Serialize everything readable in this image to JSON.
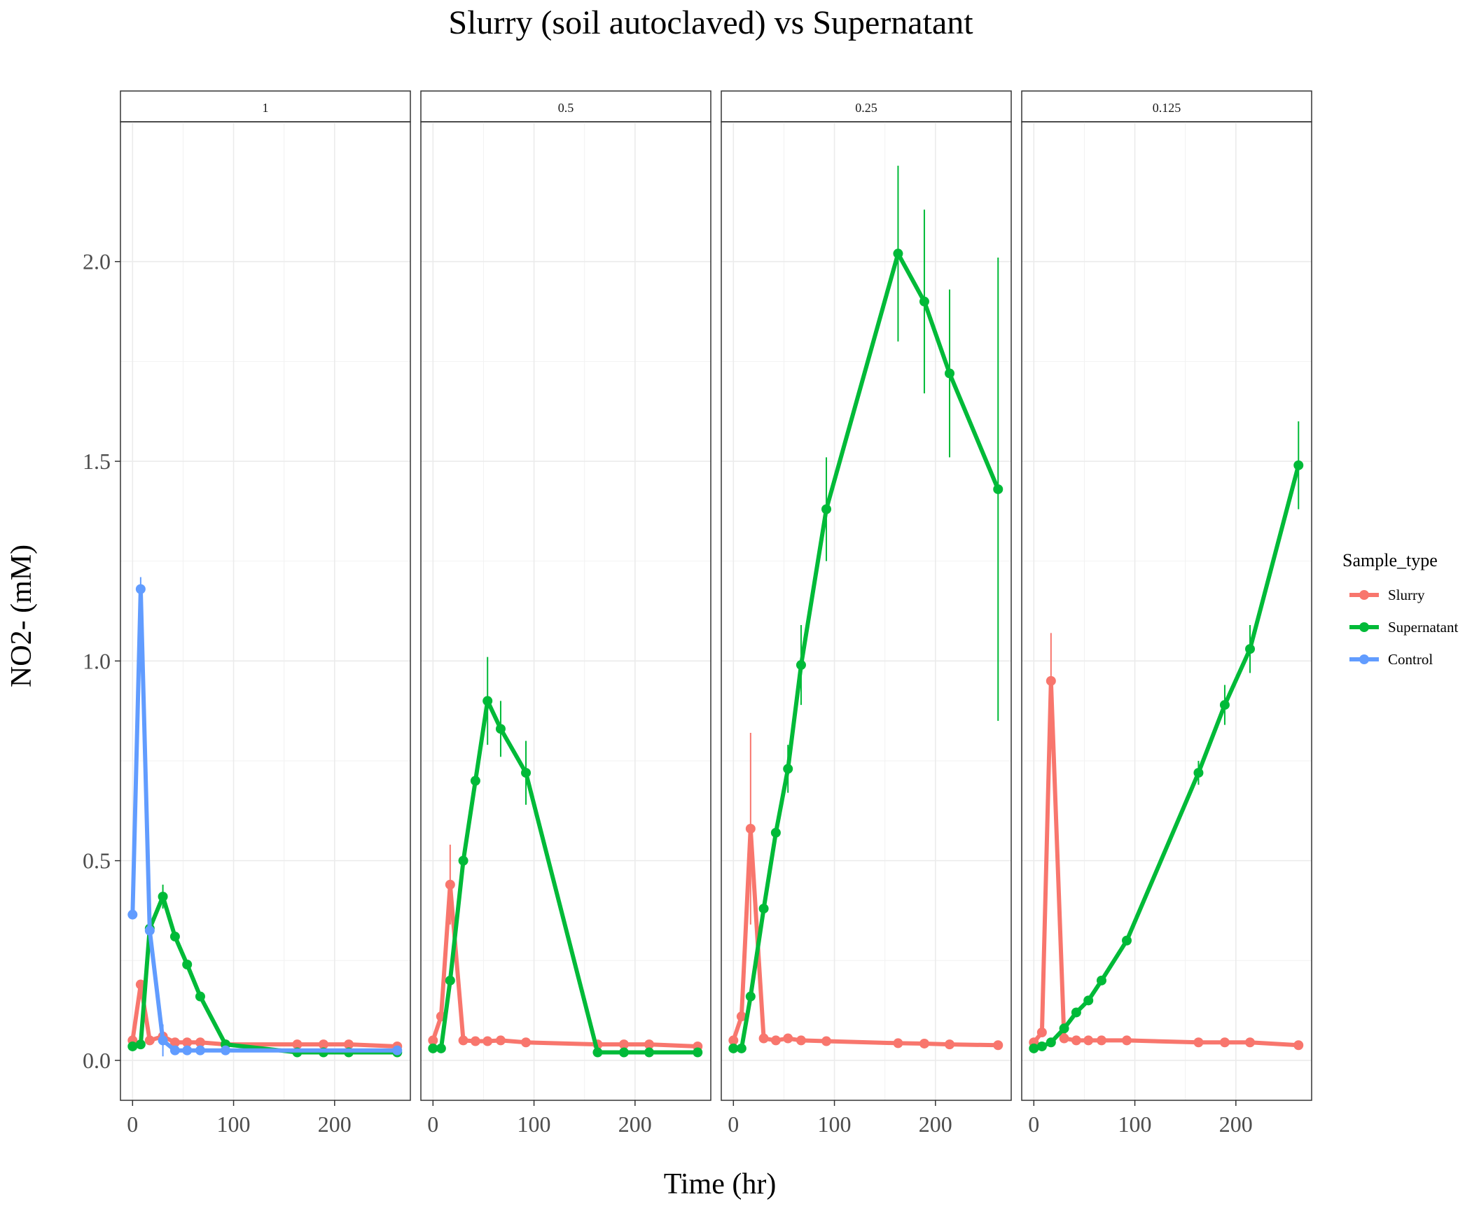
{
  "chart_data": {
    "type": "line",
    "title": "Slurry (soil autoclaved) vs Supernatant",
    "xlabel": "Time (hr)",
    "ylabel": "NO2- (mM)",
    "xlim": [
      -12,
      275
    ],
    "ylim": [
      -0.1,
      2.35
    ],
    "x_ticks": [
      0,
      100,
      200
    ],
    "x_tick_labels": [
      "0",
      "100",
      "200"
    ],
    "y_ticks": [
      0.0,
      0.5,
      1.0,
      1.5,
      2.0
    ],
    "y_tick_labels": [
      "0.0",
      "0.5",
      "1.0",
      "1.5",
      "2.0"
    ],
    "grid": true,
    "legend": {
      "title": "Sample_type",
      "position": "right",
      "entries": [
        "Slurry",
        "Supernatant",
        "Control"
      ]
    },
    "colors": {
      "Slurry": "#F8766D",
      "Supernatant": "#00BA38",
      "Control": "#619CFF"
    },
    "facets": [
      {
        "label": "1",
        "series": [
          {
            "name": "Slurry",
            "points": [
              [
                0,
                0.05
              ],
              [
                8,
                0.19
              ],
              [
                17,
                0.05
              ],
              [
                30,
                0.06
              ],
              [
                42,
                0.045
              ],
              [
                54,
                0.045
              ],
              [
                67,
                0.045
              ],
              [
                92,
                0.04
              ],
              [
                163,
                0.04
              ],
              [
                189,
                0.04
              ],
              [
                214,
                0.04
              ],
              [
                262,
                0.035
              ]
            ]
          },
          {
            "name": "Supernatant",
            "points": [
              [
                0,
                0.035
              ],
              [
                8,
                0.04
              ],
              [
                17,
                0.33
              ],
              [
                30,
                0.41
              ],
              [
                42,
                0.31
              ],
              [
                54,
                0.24
              ],
              [
                67,
                0.16
              ],
              [
                92,
                0.04
              ],
              [
                163,
                0.02
              ],
              [
                189,
                0.02
              ],
              [
                214,
                0.02
              ],
              [
                262,
                0.02
              ]
            ],
            "errors": [
              null,
              null,
              0.03,
              0.03,
              null,
              null,
              null,
              null,
              null,
              null,
              null,
              null
            ]
          },
          {
            "name": "Control",
            "points": [
              [
                0,
                0.365
              ],
              [
                8,
                1.18
              ],
              [
                17,
                0.325
              ],
              [
                30,
                0.05
              ],
              [
                42,
                0.025
              ],
              [
                54,
                0.025
              ],
              [
                67,
                0.025
              ],
              [
                92,
                0.025
              ],
              [
                262,
                0.025
              ]
            ],
            "errors": [
              null,
              0.03,
              null,
              0.04,
              null,
              null,
              null,
              null,
              null
            ]
          }
        ]
      },
      {
        "label": "0.5",
        "series": [
          {
            "name": "Slurry",
            "points": [
              [
                0,
                0.05
              ],
              [
                8,
                0.11
              ],
              [
                17,
                0.44
              ],
              [
                30,
                0.05
              ],
              [
                42,
                0.048
              ],
              [
                54,
                0.048
              ],
              [
                67,
                0.05
              ],
              [
                92,
                0.045
              ],
              [
                163,
                0.04
              ],
              [
                189,
                0.04
              ],
              [
                214,
                0.04
              ],
              [
                262,
                0.035
              ]
            ],
            "errors": [
              null,
              null,
              0.1,
              null,
              null,
              null,
              null,
              null,
              null,
              null,
              null,
              null
            ]
          },
          {
            "name": "Supernatant",
            "points": [
              [
                0,
                0.03
              ],
              [
                8,
                0.03
              ],
              [
                17,
                0.2
              ],
              [
                30,
                0.5
              ],
              [
                42,
                0.7
              ],
              [
                54,
                0.9
              ],
              [
                67,
                0.83
              ],
              [
                92,
                0.72
              ],
              [
                163,
                0.02
              ],
              [
                189,
                0.02
              ],
              [
                214,
                0.02
              ],
              [
                262,
                0.02
              ]
            ],
            "errors": [
              null,
              null,
              null,
              null,
              null,
              0.11,
              0.07,
              0.08,
              null,
              null,
              null,
              null
            ]
          }
        ]
      },
      {
        "label": "0.25",
        "series": [
          {
            "name": "Slurry",
            "points": [
              [
                0,
                0.05
              ],
              [
                8,
                0.11
              ],
              [
                17,
                0.58
              ],
              [
                30,
                0.055
              ],
              [
                42,
                0.05
              ],
              [
                54,
                0.055
              ],
              [
                67,
                0.05
              ],
              [
                92,
                0.048
              ],
              [
                163,
                0.043
              ],
              [
                189,
                0.042
              ],
              [
                214,
                0.04
              ],
              [
                262,
                0.038
              ]
            ],
            "errors": [
              null,
              null,
              0.24,
              null,
              null,
              null,
              null,
              null,
              null,
              null,
              null,
              null
            ]
          },
          {
            "name": "Supernatant",
            "points": [
              [
                0,
                0.03
              ],
              [
                8,
                0.03
              ],
              [
                17,
                0.16
              ],
              [
                30,
                0.38
              ],
              [
                42,
                0.57
              ],
              [
                54,
                0.73
              ],
              [
                67,
                0.99
              ],
              [
                92,
                1.38
              ],
              [
                163,
                2.02
              ],
              [
                189,
                1.9
              ],
              [
                214,
                1.72
              ],
              [
                262,
                1.43
              ]
            ],
            "errors": [
              null,
              null,
              null,
              null,
              null,
              0.06,
              0.1,
              0.13,
              0.22,
              0.23,
              0.21,
              0.58
            ]
          }
        ]
      },
      {
        "label": "0.125",
        "series": [
          {
            "name": "Slurry",
            "points": [
              [
                0,
                0.045
              ],
              [
                8,
                0.07
              ],
              [
                17,
                0.95
              ],
              [
                30,
                0.055
              ],
              [
                42,
                0.05
              ],
              [
                54,
                0.05
              ],
              [
                67,
                0.05
              ],
              [
                92,
                0.05
              ],
              [
                163,
                0.045
              ],
              [
                189,
                0.045
              ],
              [
                214,
                0.045
              ],
              [
                262,
                0.038
              ]
            ],
            "errors": [
              null,
              null,
              0.12,
              null,
              null,
              null,
              null,
              null,
              null,
              null,
              null,
              null
            ]
          },
          {
            "name": "Supernatant",
            "points": [
              [
                0,
                0.03
              ],
              [
                8,
                0.035
              ],
              [
                17,
                0.045
              ],
              [
                30,
                0.08
              ],
              [
                42,
                0.12
              ],
              [
                54,
                0.15
              ],
              [
                67,
                0.2
              ],
              [
                92,
                0.3
              ],
              [
                163,
                0.72
              ],
              [
                189,
                0.89
              ],
              [
                214,
                1.03
              ],
              [
                262,
                1.49
              ]
            ],
            "errors": [
              null,
              null,
              null,
              null,
              null,
              null,
              null,
              null,
              0.03,
              0.05,
              0.06,
              0.11
            ]
          }
        ]
      }
    ]
  }
}
